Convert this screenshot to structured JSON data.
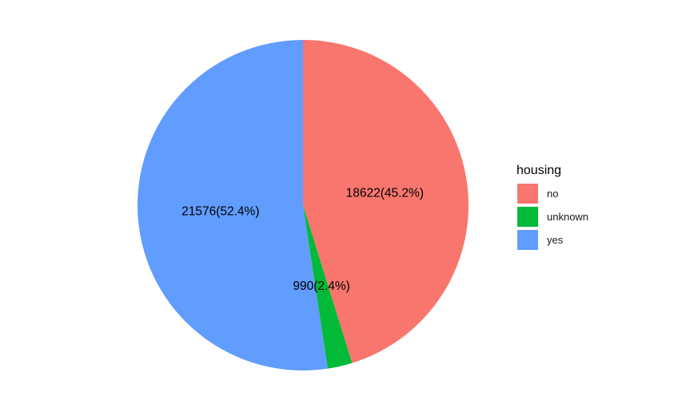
{
  "chart_data": {
    "type": "pie",
    "legend_title": "housing",
    "legend_position": "right",
    "start_angle": "12 o'clock",
    "direction": "clockwise",
    "slices": [
      {
        "category": "no",
        "value": 18622,
        "percent": 45.2,
        "label": "18622(45.2%)",
        "color": "#F8766D"
      },
      {
        "category": "unknown",
        "value": 990,
        "percent": 2.4,
        "label": "990(2.4%)",
        "color": "#00BA38"
      },
      {
        "category": "yes",
        "value": 21576,
        "percent": 52.4,
        "label": "21576(52.4%)",
        "color": "#619CFF"
      }
    ]
  }
}
